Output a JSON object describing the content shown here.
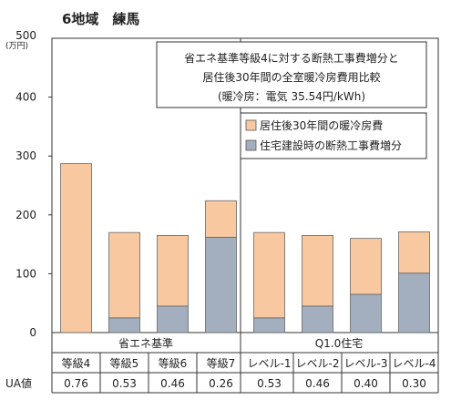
{
  "chart_data": {
    "type": "bar",
    "title": "6地域　練馬",
    "subtitle": [
      "省エネ基準等級4に対する断熱工事費増分と",
      "居住後30年間の全室暖冷房費用比較",
      "(暖冷房：電気 35.54円/kWh)"
    ],
    "ylabel": [
      "(万円)"
    ],
    "ylim": [
      0,
      500
    ],
    "yticks": [
      "0",
      "100",
      "200",
      "300",
      "400",
      "500"
    ],
    "stacked": true,
    "categories": [
      "等級4",
      "等級5",
      "等級6",
      "等級7",
      "レベル-1",
      "レベル-2",
      "レベル-3",
      "レベル-4"
    ],
    "groups": [
      {
        "label": "省エネ基準",
        "count": 4
      },
      {
        "label": "Q1.0住宅",
        "count": 4
      }
    ],
    "series": [
      {
        "name": "住宅建設時の断熱工事費増分",
        "color": "#a3aebf",
        "values": [
          0,
          25,
          45,
          162,
          25,
          45,
          65,
          101
        ]
      },
      {
        "name": "居住後30年間の暖冷房費",
        "color": "#f8c9a1",
        "values": [
          287,
          145,
          120,
          62,
          145,
          120,
          95,
          70
        ]
      }
    ],
    "legend": "top-right",
    "ua_label": "UA値",
    "ua_values": [
      "0.76",
      "0.53",
      "0.46",
      "0.26",
      "0.53",
      "0.46",
      "0.40",
      "0.30"
    ],
    "grid": false
  }
}
